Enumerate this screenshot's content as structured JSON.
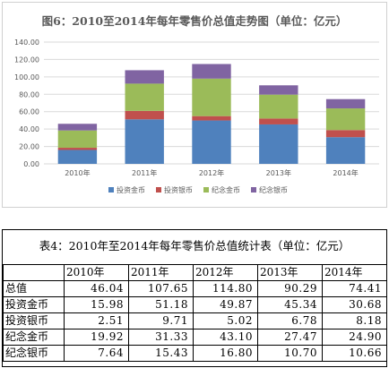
{
  "chart_data": {
    "type": "bar",
    "stacked": true,
    "title": "图6：2010至2014年每年零售价总值走势图（单位：亿元）",
    "categories": [
      "2010年",
      "2011年",
      "2012年",
      "2013年",
      "2014年"
    ],
    "ylim": [
      0,
      140
    ],
    "yticks": [
      "0.00",
      "20.00",
      "40.00",
      "60.00",
      "80.00",
      "100.00",
      "120.00",
      "140.00"
    ],
    "grid": true,
    "legend_position": "bottom",
    "series": [
      {
        "name": "投资金币",
        "color": "#4f81bd",
        "values": [
          15.98,
          51.18,
          49.87,
          45.34,
          30.68
        ]
      },
      {
        "name": "投资银币",
        "color": "#c0504d",
        "values": [
          2.51,
          9.71,
          5.02,
          6.78,
          8.18
        ]
      },
      {
        "name": "纪念金币",
        "color": "#9bbb59",
        "values": [
          19.92,
          31.33,
          43.1,
          27.47,
          24.9
        ]
      },
      {
        "name": "纪念银币",
        "color": "#8064a2",
        "values": [
          7.64,
          15.43,
          16.8,
          10.7,
          10.66
        ]
      }
    ]
  },
  "table": {
    "title": "表4：2010年至2014年每年零售价总值统计表（单位：亿元）",
    "headers": [
      "",
      "2010年",
      "2011年",
      "2012年",
      "2013年",
      "2014年"
    ],
    "rows": [
      {
        "label": "总值",
        "values": [
          "46.04",
          "107.65",
          "114.80",
          "90.29",
          "74.41"
        ]
      },
      {
        "label": "投资金币",
        "values": [
          "15.98",
          "51.18",
          "49.87",
          "45.34",
          "30.68"
        ]
      },
      {
        "label": "投资银币",
        "values": [
          "2.51",
          "9.71",
          "5.02",
          "6.78",
          "8.18"
        ]
      },
      {
        "label": "纪念金币",
        "values": [
          "19.92",
          "31.33",
          "43.10",
          "27.47",
          "24.90"
        ]
      },
      {
        "label": "纪念银币",
        "values": [
          "7.64",
          "15.43",
          "16.80",
          "10.70",
          "10.66"
        ]
      }
    ]
  }
}
